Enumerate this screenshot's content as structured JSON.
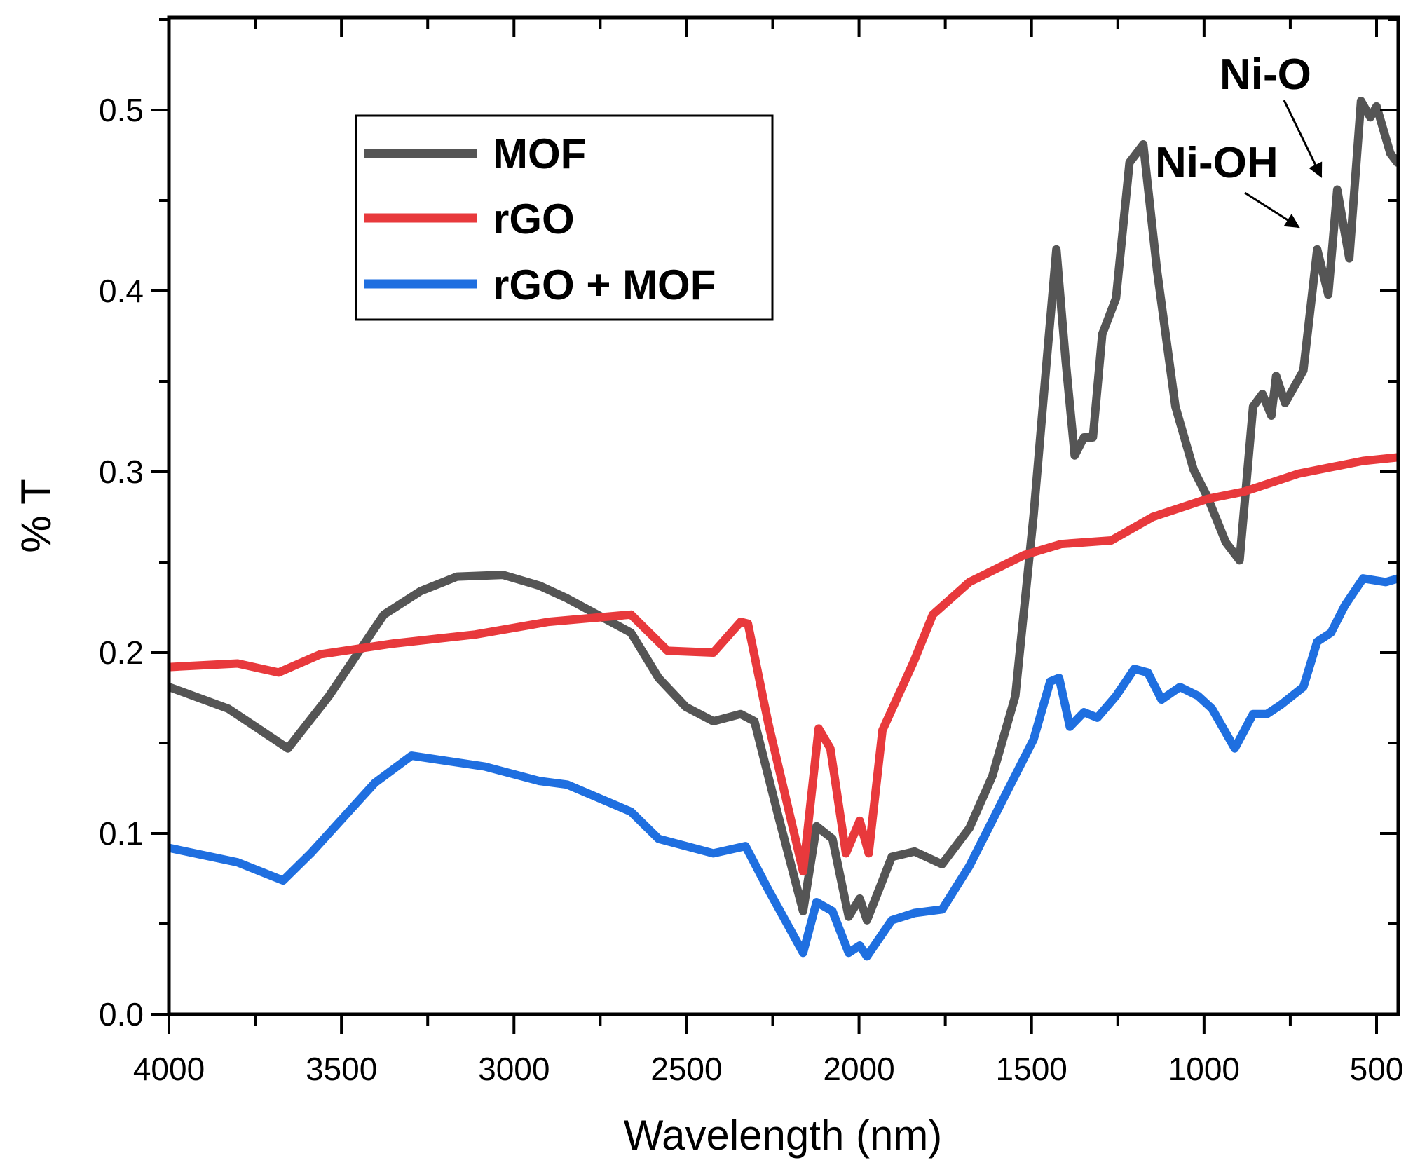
{
  "chart_data": {
    "type": "line",
    "title": "",
    "xlabel": "Wavelength (nm)",
    "ylabel": "% T",
    "xlim": [
      4000,
      437
    ],
    "ylim": [
      0,
      0.55
    ],
    "x_ticks": [
      4000,
      3500,
      3000,
      2500,
      2000,
      1500,
      1000,
      500
    ],
    "x_tick_labels": [
      "4000",
      "3500",
      "3000",
      "2500",
      "2000",
      "1500",
      "1000",
      "500"
    ],
    "y_ticks": [
      0.0,
      0.1,
      0.2,
      0.3,
      0.4,
      0.5
    ],
    "y_tick_labels": [
      "0.0",
      "0.1",
      "0.2",
      "0.3",
      "0.4",
      "0.5"
    ],
    "grid": false,
    "legend_position": "top-left",
    "series": [
      {
        "name": "MOF",
        "color": "#555555",
        "x": [
          4000,
          3828,
          3655,
          3536,
          3377,
          3271,
          3165,
          3032,
          2926,
          2846,
          2661,
          2581,
          2502,
          2422,
          2343,
          2303,
          2237,
          2162,
          2123,
          2077,
          2030,
          1998,
          1977,
          1905,
          1839,
          1759,
          1680,
          1613,
          1547,
          1494,
          1454,
          1428,
          1401,
          1375,
          1348,
          1322,
          1295,
          1255,
          1216,
          1176,
          1136,
          1083,
          1030,
          990,
          937,
          897,
          858,
          831,
          805,
          791,
          765,
          712,
          672,
          640,
          614,
          579,
          545,
          518,
          500,
          460,
          440
        ],
        "y": [
          0.181,
          0.169,
          0.147,
          0.176,
          0.221,
          0.234,
          0.242,
          0.243,
          0.237,
          0.23,
          0.211,
          0.186,
          0.17,
          0.162,
          0.166,
          0.162,
          0.112,
          0.057,
          0.104,
          0.097,
          0.054,
          0.064,
          0.052,
          0.087,
          0.09,
          0.083,
          0.103,
          0.132,
          0.176,
          0.276,
          0.366,
          0.423,
          0.361,
          0.309,
          0.319,
          0.319,
          0.376,
          0.396,
          0.471,
          0.481,
          0.411,
          0.336,
          0.301,
          0.286,
          0.261,
          0.251,
          0.336,
          0.343,
          0.331,
          0.353,
          0.338,
          0.356,
          0.423,
          0.398,
          0.456,
          0.418,
          0.505,
          0.496,
          0.502,
          0.476,
          0.471
        ]
      },
      {
        "name": "rGO",
        "color": "#e8393c",
        "x": [
          4000,
          3801,
          3682,
          3562,
          3350,
          3112,
          2900,
          2661,
          2555,
          2422,
          2343,
          2322,
          2263,
          2162,
          2117,
          2083,
          2038,
          1998,
          1972,
          1932,
          1839,
          1786,
          1680,
          1521,
          1415,
          1269,
          1149,
          990,
          884,
          725,
          539,
          437
        ],
        "y": [
          0.192,
          0.194,
          0.189,
          0.199,
          0.205,
          0.21,
          0.217,
          0.221,
          0.201,
          0.2,
          0.217,
          0.216,
          0.161,
          0.079,
          0.158,
          0.147,
          0.089,
          0.107,
          0.089,
          0.157,
          0.196,
          0.221,
          0.239,
          0.254,
          0.26,
          0.262,
          0.275,
          0.285,
          0.289,
          0.299,
          0.306,
          0.308
        ]
      },
      {
        "name": "rGO + MOF",
        "color": "#1f6fe0",
        "x": [
          4000,
          3801,
          3669,
          3589,
          3403,
          3297,
          3085,
          2926,
          2846,
          2661,
          2581,
          2422,
          2329,
          2263,
          2162,
          2123,
          2077,
          2030,
          1998,
          1977,
          1905,
          1839,
          1759,
          1680,
          1574,
          1494,
          1446,
          1420,
          1389,
          1348,
          1309,
          1255,
          1202,
          1163,
          1123,
          1070,
          1017,
          977,
          911,
          858,
          818,
          778,
          712,
          672,
          632,
          592,
          539,
          473,
          437
        ],
        "y": [
          0.092,
          0.084,
          0.074,
          0.089,
          0.128,
          0.143,
          0.137,
          0.129,
          0.127,
          0.112,
          0.097,
          0.089,
          0.093,
          0.069,
          0.034,
          0.062,
          0.057,
          0.034,
          0.038,
          0.032,
          0.052,
          0.056,
          0.058,
          0.082,
          0.122,
          0.152,
          0.184,
          0.186,
          0.159,
          0.167,
          0.164,
          0.176,
          0.191,
          0.189,
          0.174,
          0.181,
          0.176,
          0.169,
          0.147,
          0.166,
          0.166,
          0.171,
          0.181,
          0.206,
          0.211,
          0.226,
          0.241,
          0.239,
          0.241
        ]
      }
    ],
    "annotations": [
      {
        "text": "Ni-O",
        "points_to_x": 600,
        "points_to_y": 0.455
      },
      {
        "text": "Ni-OH",
        "points_to_x": 640,
        "points_to_y": 0.435
      }
    ]
  }
}
